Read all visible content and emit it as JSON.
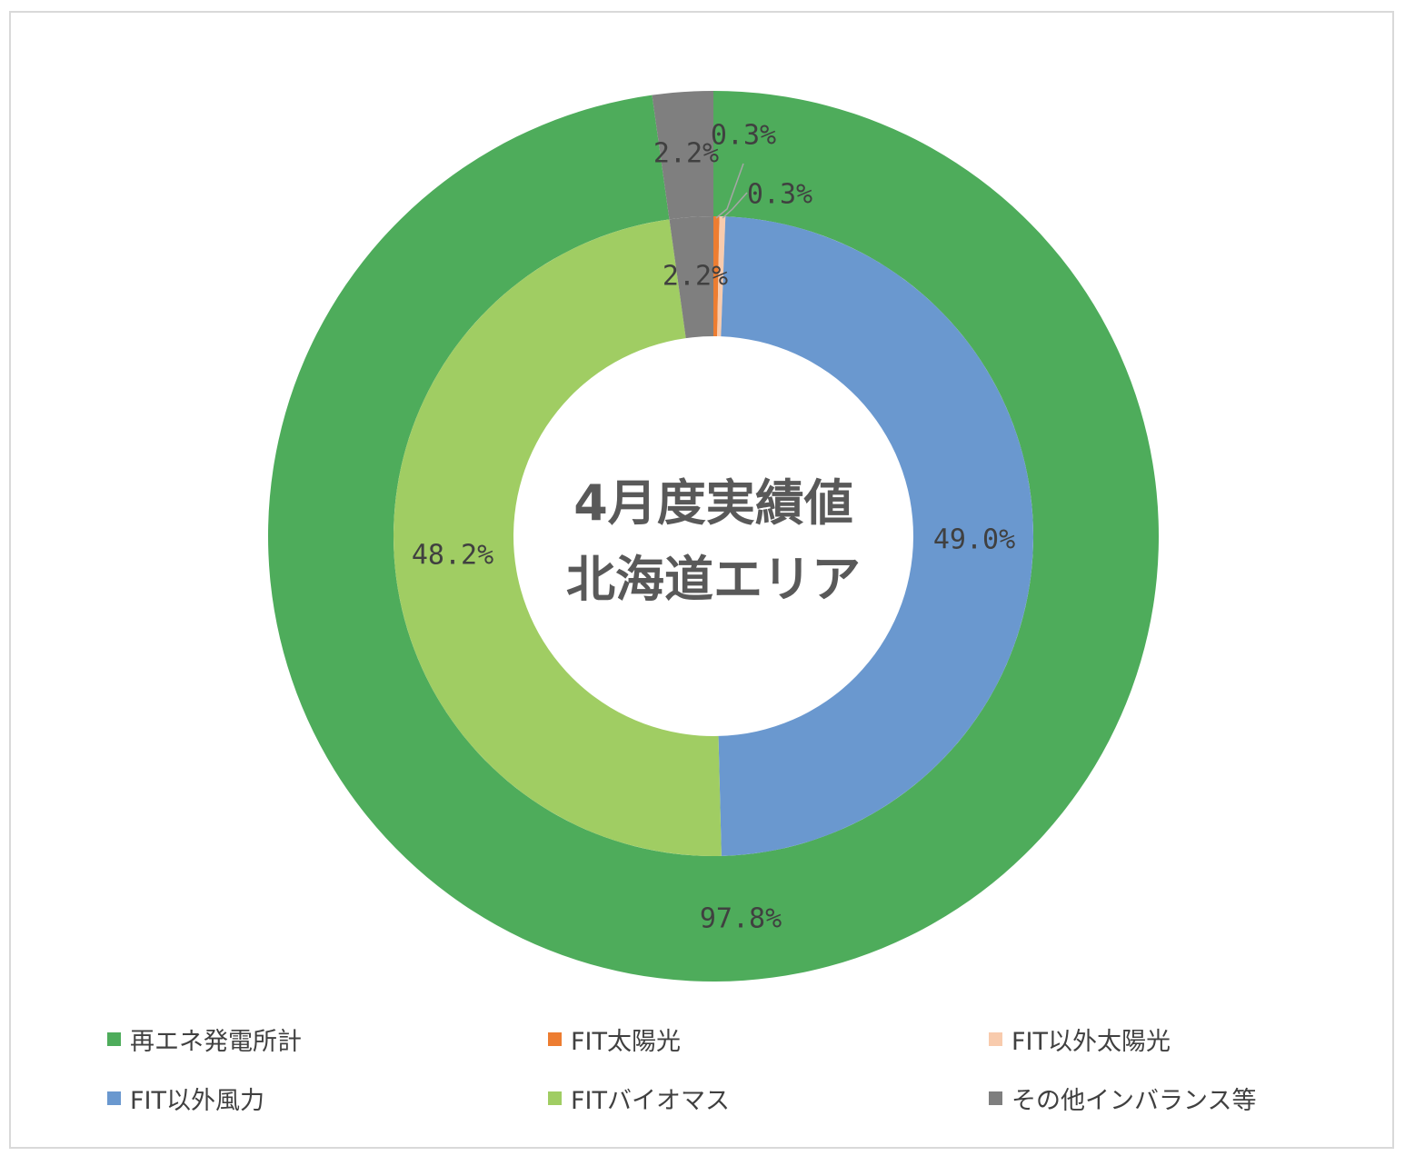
{
  "center_title": [
    "4月度実績値",
    "北海道エリア"
  ],
  "chart_data": {
    "type": "pie",
    "subtype": "doughnut",
    "title": "4月度実績値 北海道エリア",
    "rings": [
      {
        "name": "outer",
        "slices": [
          {
            "label": "再エネ発電所計",
            "value": 97.8,
            "display": "97.8%",
            "color": "#4eac5b"
          },
          {
            "label": "その他インバランス等",
            "value": 2.2,
            "display": "2.2%",
            "color": "#7f7f7f"
          }
        ]
      },
      {
        "name": "inner",
        "slices": [
          {
            "label": "FIT太陽光",
            "value": 0.3,
            "display": "0.3%",
            "color": "#ed7d31"
          },
          {
            "label": "FIT以外太陽光",
            "value": 0.3,
            "display": "0.3%",
            "color": "#f8cbad"
          },
          {
            "label": "FIT以外風力",
            "value": 49.0,
            "display": "49.0%",
            "color": "#6a98cf"
          },
          {
            "label": "FITバイオマス",
            "value": 48.2,
            "display": "48.2%",
            "color": "#a0cd63"
          },
          {
            "label": "その他インバランス等",
            "value": 2.2,
            "display": "2.2%",
            "color": "#7f7f7f"
          }
        ]
      }
    ],
    "legend": {
      "placement": "bottom",
      "items": [
        {
          "label": "再エネ発電所計",
          "color": "#4eac5b"
        },
        {
          "label": "FIT太陽光",
          "color": "#ed7d31"
        },
        {
          "label": "FIT以外太陽光",
          "color": "#f8cbad"
        },
        {
          "label": "FIT以外風力",
          "color": "#6a98cf"
        },
        {
          "label": "FITバイオマス",
          "color": "#a0cd63"
        },
        {
          "label": "その他インバランス等",
          "color": "#7f7f7f"
        }
      ]
    }
  }
}
